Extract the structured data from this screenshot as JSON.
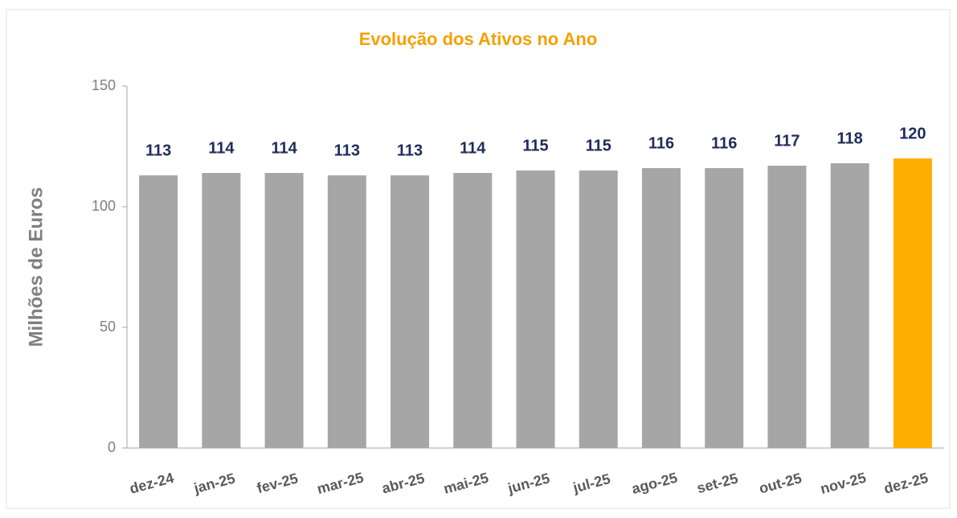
{
  "chart_data": {
    "type": "bar",
    "title": "Evolução dos Ativos no Ano",
    "y_label": "Milhões de Euros",
    "categories": [
      "dez-24",
      "jan-25",
      "fev-25",
      "mar-25",
      "abr-25",
      "mai-25",
      "jun-25",
      "jul-25",
      "ago-25",
      "set-25",
      "out-25",
      "nov-25",
      "dez-25"
    ],
    "values": [
      113,
      114,
      114,
      113,
      113,
      114,
      115,
      115,
      116,
      116,
      117,
      118,
      120
    ],
    "colors": [
      "#a6a6a6",
      "#a6a6a6",
      "#a6a6a6",
      "#a6a6a6",
      "#a6a6a6",
      "#a6a6a6",
      "#a6a6a6",
      "#a6a6a6",
      "#a6a6a6",
      "#a6a6a6",
      "#a6a6a6",
      "#a6a6a6",
      "#ffae00"
    ],
    "ylim": [
      0,
      150
    ],
    "yticks": [
      0,
      50,
      100,
      150
    ],
    "grid": false
  }
}
